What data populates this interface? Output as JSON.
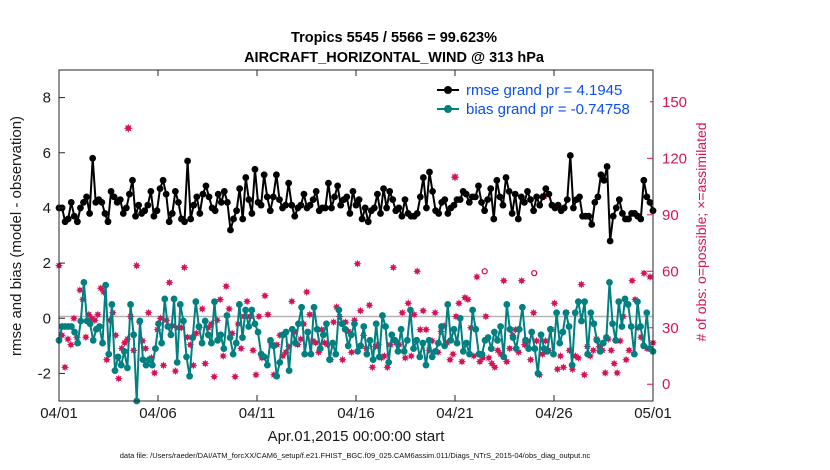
{
  "chart_data": {
    "type": "line",
    "title": "Tropics 5545 / 5566 = 99.623%",
    "subtitle": "AIRCRAFT_HORIZONTAL_WIND @ 313 hPa",
    "xlabel": "Apr.01,2015 00:00:00 start",
    "ylabel": "rmse and bias (model - observation)",
    "y2label": "# of obs: o=possible; ×=assimilated",
    "footnote": "data file: /Users/raeder/DAI/ATM_forcXX/CAM6_setup/f.e21.FHIST_BGC.f09_025.CAM6assim.011/Diags_NTrS_2015-04/obs_diag_output.nc",
    "x_ticks": [
      "04/01",
      "04/06",
      "04/11",
      "04/16",
      "04/21",
      "04/26",
      "05/01"
    ],
    "y_ticks": [
      "-2",
      "0",
      "2",
      "4",
      "6",
      "8"
    ],
    "y2_ticks": [
      "0",
      "30",
      "60",
      "90",
      "120",
      "150"
    ],
    "xlim_days": [
      0,
      30
    ],
    "ylim": [
      -3,
      9
    ],
    "y2lim": [
      -8.9,
      166.9
    ],
    "colors": {
      "rmse": "#000000",
      "bias": "#008080",
      "obs": "#d4145a",
      "zero_line": "#b3b3b3"
    },
    "series": [
      {
        "name": "rmse grand pr = 4.1945",
        "color": "#000000",
        "values": [
          4.0,
          4.0,
          3.5,
          3.6,
          4.2,
          3.7,
          3.5,
          4.0,
          4.2,
          4.4,
          3.8,
          5.8,
          4.2,
          4.3,
          4.2,
          3.8,
          3.5,
          4.6,
          4.4,
          4.2,
          4.3,
          3.8,
          4.0,
          4.5,
          5.0,
          3.7,
          4.1,
          3.8,
          3.9,
          4.1,
          4.6,
          3.7,
          3.9,
          4.7,
          5.0,
          4.5,
          3.5,
          3.8,
          4.6,
          4.2,
          3.6,
          3.5,
          5.7,
          3.6,
          4.1,
          4.4,
          3.8,
          4.5,
          4.8,
          4.4,
          4.0,
          3.9,
          4.5,
          4.2,
          4.6,
          4.2,
          3.2,
          3.6,
          3.9,
          4.7,
          3.6,
          5.1,
          4.3,
          3.8,
          5.4,
          4.2,
          4.1,
          5.2,
          4.4,
          3.9,
          4.4,
          5.2,
          4.3,
          4.0,
          4.1,
          4.9,
          4.1,
          3.7,
          4.0,
          4.1,
          4.5,
          4.0,
          4.1,
          4.3,
          4.6,
          3.9,
          4.0,
          4.0,
          4.9,
          4.0,
          4.4,
          4.8,
          4.1,
          4.3,
          4.4,
          3.8,
          4.6,
          4.1,
          4.3,
          3.6,
          4.0,
          3.5,
          3.9,
          4.0,
          4.5,
          3.8,
          4.7,
          4.0,
          4.6,
          4.3,
          3.9,
          4.0,
          3.7,
          4.3,
          3.8,
          3.7,
          3.7,
          3.8,
          4.4,
          5.1,
          4.0,
          5.3,
          4.6,
          3.9,
          3.8,
          4.2,
          4.3,
          3.8,
          4.0,
          4.1,
          4.3,
          4.3,
          4.6,
          4.5,
          4.2,
          4.4,
          4.4,
          4.8,
          4.2,
          3.9,
          4.3,
          4.7,
          3.6,
          5.0,
          4.4,
          4.1,
          5.1,
          4.6,
          3.8,
          4.5,
          3.6,
          4.4,
          4.2,
          4.6,
          4.3,
          3.9,
          4.4,
          4.1,
          4.4,
          4.7,
          4.5,
          4.1,
          4.0,
          4.1,
          3.9,
          4.0,
          4.3,
          5.9,
          4.0,
          4.3,
          4.4,
          3.7,
          3.7,
          3.7,
          3.4,
          4.2,
          4.4,
          5.2,
          5.0,
          5.5,
          2.8,
          3.7,
          4.0,
          4.3,
          3.8,
          3.6,
          3.6,
          3.8,
          3.8,
          3.7,
          3.6,
          5.0,
          4.4,
          4.2,
          3.9
        ]
      },
      {
        "name": "bias grand pr = -0.74758",
        "color": "#008080",
        "values": [
          -0.8,
          -0.3,
          -0.3,
          -0.3,
          -0.3,
          -0.5,
          -0.9,
          -0.1,
          1.3,
          -0.1,
          -0.2,
          -0.8,
          -0.4,
          -0.3,
          -0.9,
          1.2,
          -1.3,
          0.5,
          -1.9,
          -1.4,
          -1.7,
          -1.2,
          -1.8,
          0.5,
          -0.6,
          -3.0,
          -0.1,
          -1.5,
          -1.7,
          -1.5,
          -1.7,
          -1.1,
          -0.2,
          -0.9,
          0.7,
          -0.3,
          -0.6,
          0.7,
          -1.6,
          0.5,
          -0.1,
          -1.4,
          -2.1,
          -0.7,
          0.6,
          -0.3,
          -0.9,
          -0.1,
          -0.6,
          -0.9,
          0.6,
          -0.8,
          -0.6,
          -1.1,
          0.1,
          -0.7,
          -1.3,
          -0.9,
          0.5,
          -0.7,
          0.3,
          -0.3,
          0.3,
          -0.2,
          -0.5,
          -1.3,
          -1.4,
          -1.7,
          -0.8,
          -1.0,
          -2.1,
          -1.6,
          -0.6,
          -0.5,
          -1.9,
          -0.4,
          -0.9,
          -0.2,
          0.4,
          -1.3,
          -0.5,
          -1.3,
          0.4,
          -0.4,
          -1.1,
          -0.6,
          -0.2,
          -1.5,
          -0.9,
          -1.3,
          0.3,
          -0.2,
          -0.4,
          -1.0,
          -0.6,
          -0.2,
          -1.2,
          -1.0,
          -0.3,
          -1.3,
          -0.8,
          -1.5,
          -0.2,
          -1.4,
          0.1,
          -0.3,
          -1.6,
          -0.6,
          -0.8,
          -1.2,
          -0.4,
          -1.2,
          -0.8,
          0.3,
          -1.1,
          -0.8,
          -1.4,
          -0.9,
          -1.7,
          -0.8,
          -1.4,
          -1.2,
          -0.9,
          -0.3,
          -1.0,
          0.5,
          -0.8,
          -0.4,
          -0.9,
          0.0,
          -1.2,
          -0.9,
          -1.3,
          0.3,
          -0.4,
          -1.3,
          -1.3,
          -0.8,
          -0.7,
          -1.1,
          -0.5,
          -0.8,
          -0.3,
          -1.4,
          0.5,
          -0.4,
          -0.7,
          -1.1,
          -0.4,
          0.4,
          -0.8,
          -1.1,
          -0.5,
          -1.1,
          -2.0,
          -0.6,
          -1.1,
          -1.2,
          -0.4,
          -1.3,
          0.2,
          -0.9,
          -0.5,
          0.2,
          -0.3,
          -1.7,
          0.2,
          0.6,
          -0.1,
          0.6,
          -1.3,
          0.2,
          -0.2,
          -0.8,
          -1.2,
          -0.9,
          -0.7,
          1.3,
          -0.2,
          -0.8,
          0.6,
          -0.3,
          0.7,
          0.5,
          -0.3,
          -1.3,
          0.6,
          -0.3,
          -1.0,
          0.2,
          -1.1,
          -1.2
        ]
      },
      {
        "name": "# of obs assimilated",
        "color": "#d4145a",
        "axis": "right",
        "values": [
          63,
          26,
          9,
          24,
          21,
          35,
          25,
          50,
          45,
          25,
          37,
          35,
          34,
          37,
          51,
          49,
          13,
          34,
          38,
          26,
          3,
          19,
          22,
          24,
          36,
          18,
          63,
          33,
          23,
          19,
          38,
          14,
          6,
          29,
          35,
          10,
          34,
          54,
          31,
          7,
          30,
          30,
          62,
          25,
          21,
          10,
          27,
          30,
          40,
          11,
          30,
          32,
          4,
          34,
          45,
          15,
          52,
          40,
          27,
          4,
          32,
          19,
          36,
          44,
          36,
          18,
          5,
          36,
          14,
          47,
          37,
          22,
          5,
          21,
          26,
          15,
          17,
          20,
          44,
          28,
          21,
          24,
          32,
          49,
          37,
          23,
          22,
          17,
          29,
          22,
          21,
          13,
          33,
          41,
          36,
          13,
          33,
          28,
          17,
          34,
          64,
          39,
          26,
          19,
          42,
          9,
          20,
          21,
          14,
          15,
          9,
          21,
          62,
          22,
          21,
          38,
          14,
          43,
          15,
          37,
          60,
          29,
          39,
          29,
          18,
          23,
          38,
          17,
          28,
          31,
          22,
          13,
          16,
          36,
          43,
          12,
          46,
          45,
          30,
          15,
          57,
          12,
          14,
          36,
          14,
          11,
          9,
          18,
          16,
          55,
          12,
          19,
          26,
          29,
          17,
          55,
          21,
          23,
          13,
          38,
          23,
          5,
          16,
          23,
          18,
          29,
          43,
          8,
          15,
          9,
          38,
          18,
          8,
          15,
          14,
          53,
          5,
          20,
          15,
          18,
          24,
          20,
          18,
          6,
          24,
          18,
          11,
          6,
          23,
          36,
          13,
          18,
          55,
          45,
          30,
          25,
          59,
          19,
          57,
          22
        ]
      }
    ],
    "legend": [
      "rmse grand pr = 4.1945",
      "bias grand pr = -0.74758"
    ],
    "legend_position": "top-right",
    "possible_markers": [
      {
        "day": 21.5,
        "value": 60
      },
      {
        "day": 24.0,
        "value": 59
      }
    ],
    "outlier_markers": [
      {
        "day": 3.5,
        "value": 136
      },
      {
        "day": 20.0,
        "value": 110
      },
      {
        "day": 24.5,
        "value": 100
      }
    ]
  }
}
